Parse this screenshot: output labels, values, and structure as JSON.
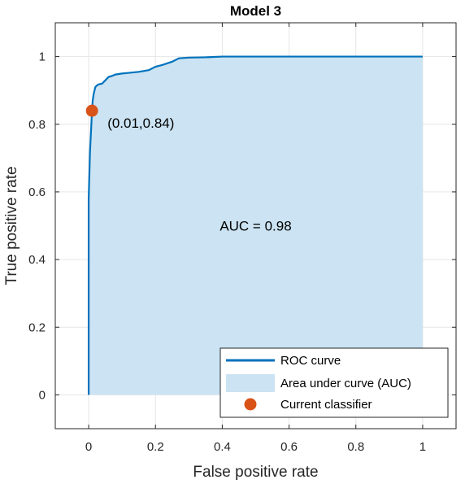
{
  "chart_data": {
    "type": "line",
    "title": "Model 3",
    "xlabel": "False positive rate",
    "ylabel": "True positive rate",
    "xlim": [
      -0.1,
      1.1
    ],
    "ylim": [
      -0.1,
      1.1
    ],
    "xticks": [
      0,
      0.2,
      0.4,
      0.6,
      0.8,
      1
    ],
    "yticks": [
      0,
      0.2,
      0.4,
      0.6,
      0.8,
      1
    ],
    "xtick_labels": [
      "0",
      "0.2",
      "0.4",
      "0.6",
      "0.8",
      "1"
    ],
    "ytick_labels": [
      "0",
      "0.2",
      "0.4",
      "0.6",
      "0.8",
      "1"
    ],
    "grid": true,
    "legend_position": "bottom-right",
    "series": [
      {
        "name": "ROC curve",
        "color": "#0072BD",
        "x": [
          0,
          0,
          0.002,
          0.004,
          0.006,
          0.008,
          0.01,
          0.012,
          0.015,
          0.02,
          0.025,
          0.03,
          0.04,
          0.05,
          0.06,
          0.07,
          0.08,
          0.1,
          0.12,
          0.15,
          0.18,
          0.2,
          0.22,
          0.25,
          0.27,
          0.3,
          0.35,
          0.4,
          0.5,
          0.7,
          1
        ],
        "y": [
          0,
          0.58,
          0.65,
          0.72,
          0.76,
          0.8,
          0.84,
          0.87,
          0.89,
          0.91,
          0.915,
          0.918,
          0.92,
          0.93,
          0.94,
          0.943,
          0.947,
          0.95,
          0.952,
          0.955,
          0.96,
          0.97,
          0.975,
          0.985,
          0.995,
          0.997,
          0.998,
          1,
          1,
          1,
          1
        ]
      },
      {
        "name": "Area under curve (AUC)",
        "color": "#CBE3F2",
        "kind": "area"
      }
    ],
    "points": [
      {
        "name": "Current classifier",
        "x": 0.01,
        "y": 0.84,
        "label": "(0.01,0.84)",
        "color": "#D95319"
      }
    ],
    "annotations": [
      {
        "text": "AUC = 0.98",
        "x": 0.5,
        "y": 0.5
      }
    ]
  }
}
